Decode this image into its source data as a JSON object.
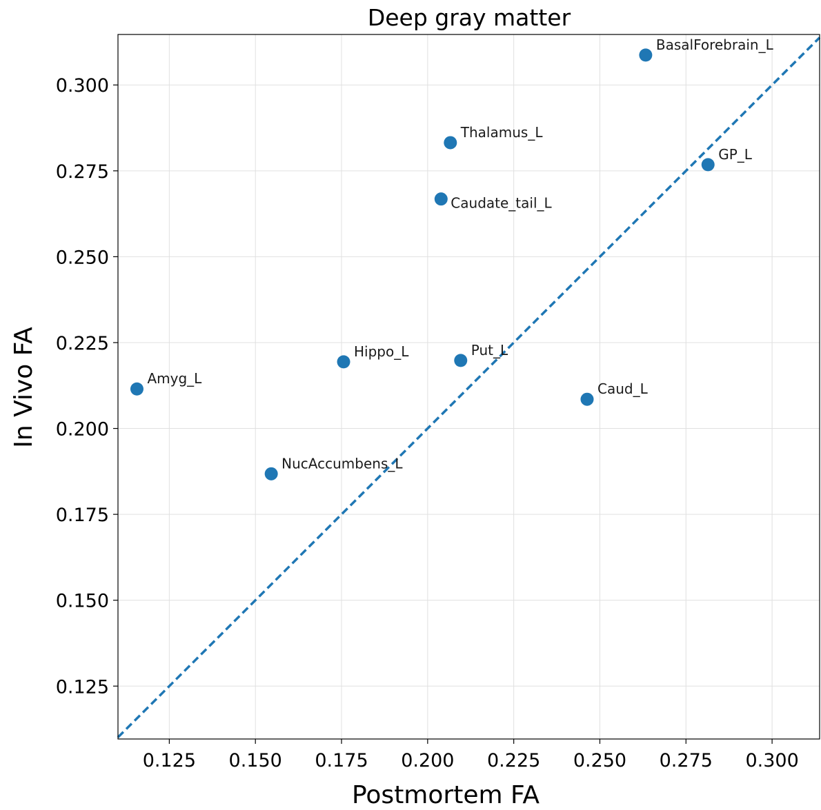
{
  "chart_data": {
    "type": "scatter",
    "title": "Deep gray matter",
    "xlabel": "Postmortem FA",
    "ylabel": "In Vivo FA",
    "xlim": [
      0.1101,
      0.3138
    ],
    "ylim": [
      0.1096,
      0.3147
    ],
    "xticks": [
      0.125,
      0.15,
      0.175,
      0.2,
      0.225,
      0.25,
      0.275,
      0.3
    ],
    "xtick_labels": [
      "0.125",
      "0.150",
      "0.175",
      "0.200",
      "0.225",
      "0.250",
      "0.275",
      "0.300"
    ],
    "yticks": [
      0.125,
      0.15,
      0.175,
      0.2,
      0.225,
      0.25,
      0.275,
      0.3
    ],
    "ytick_labels": [
      "0.125",
      "0.150",
      "0.175",
      "0.200",
      "0.225",
      "0.250",
      "0.275",
      "0.300"
    ],
    "grid": true,
    "marker_color": "#1f77b4",
    "reference_line": {
      "style": "dashed",
      "color": "#1f77b4",
      "slope": 1,
      "intercept": 0
    },
    "points": [
      {
        "label": "BasalForebrain_L",
        "x": 0.2633,
        "y": 0.3087
      },
      {
        "label": "Thalamus_L",
        "x": 0.2066,
        "y": 0.2832
      },
      {
        "label": "GP_L",
        "x": 0.2814,
        "y": 0.2768
      },
      {
        "label": "Caudate_tail_L",
        "x": 0.2039,
        "y": 0.2668
      },
      {
        "label": "Hippo_L",
        "x": 0.1756,
        "y": 0.2194
      },
      {
        "label": "Put_L",
        "x": 0.2096,
        "y": 0.2198
      },
      {
        "label": "Amyg_L",
        "x": 0.1156,
        "y": 0.2115
      },
      {
        "label": "Caud_L",
        "x": 0.2463,
        "y": 0.2085
      },
      {
        "label": "NucAccumbens_L",
        "x": 0.1546,
        "y": 0.1868
      }
    ]
  }
}
